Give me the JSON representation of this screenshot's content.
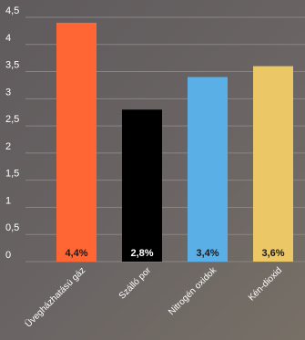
{
  "chart_data": {
    "type": "bar",
    "categories": [
      "Üvegházhatású gáz",
      "Szálló por",
      "Nitrogén oxidok",
      "Kén-dioxid"
    ],
    "values": [
      4.4,
      2.8,
      3.4,
      3.6
    ],
    "data_labels": [
      "4,4%",
      "2,8%",
      "3,4%",
      "3,6%"
    ],
    "bar_colors": [
      "#ff6633",
      "#000000",
      "#5aafe6",
      "#ecc766"
    ],
    "data_label_colors": [
      "#1a1a1a",
      "#ffffff",
      "#1a1a1a",
      "#1a1a1a"
    ],
    "yticks": [
      0,
      0.5,
      1,
      1.5,
      2,
      2.5,
      3,
      3.5,
      4,
      4.5
    ],
    "ytick_labels": [
      "0",
      "0,5",
      "1",
      "1,5",
      "2",
      "2,5",
      "3",
      "3,5",
      "4",
      "4,5"
    ],
    "ylim": [
      0,
      4.5
    ],
    "grid": true,
    "title": "",
    "xlabel": "",
    "ylabel": ""
  }
}
